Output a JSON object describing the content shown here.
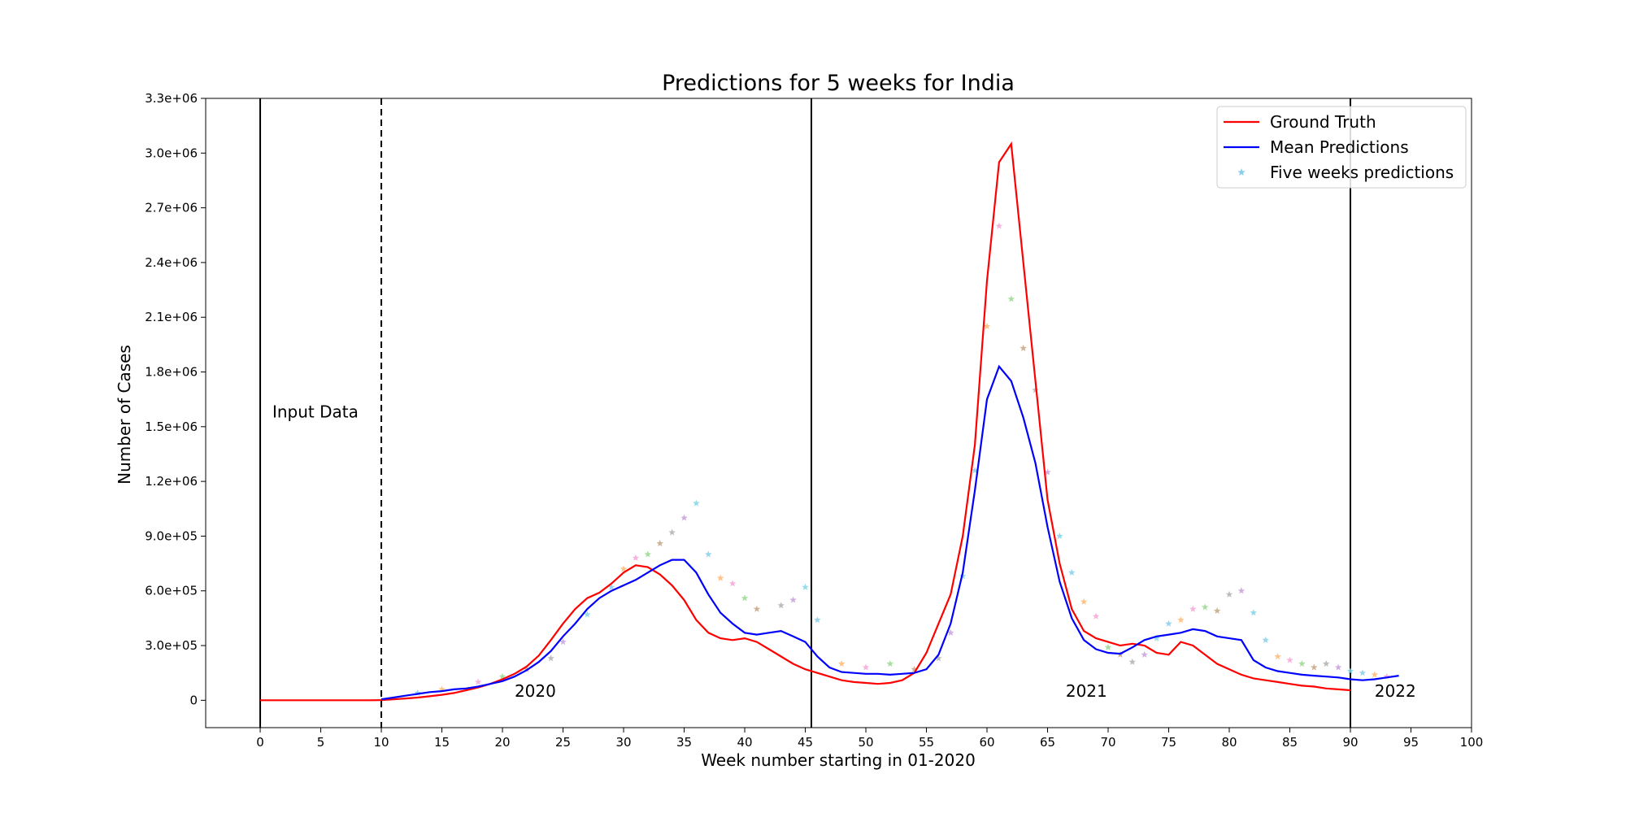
{
  "chart_data": {
    "type": "line",
    "title": "Predictions for 5 weeks for India",
    "xlabel": "Week number starting in 01-2020",
    "ylabel": "Number of Cases",
    "xlim": [
      -4.5,
      100
    ],
    "ylim": [
      -150000,
      3300000
    ],
    "xticks": [
      0,
      5,
      10,
      15,
      20,
      25,
      30,
      35,
      40,
      45,
      50,
      55,
      60,
      65,
      70,
      75,
      80,
      85,
      90,
      95,
      100
    ],
    "yticks": [
      0,
      300000,
      600000,
      900000,
      1200000,
      1500000,
      1800000,
      2100000,
      2400000,
      2700000,
      3000000,
      3300000
    ],
    "ytick_labels": [
      "0",
      "3.0e+05",
      "6.0e+05",
      "9.0e+05",
      "1.2e+06",
      "1.5e+06",
      "1.8e+06",
      "2.1e+06",
      "2.4e+06",
      "2.7e+06",
      "3.0e+06",
      "3.3e+06"
    ],
    "grid": false,
    "legend_position": "top-right",
    "vertical_lines": [
      {
        "x": 0,
        "style": "solid"
      },
      {
        "x": 10,
        "style": "dashed"
      },
      {
        "x": 45.5,
        "style": "solid"
      },
      {
        "x": 90,
        "style": "solid"
      }
    ],
    "annotations": [
      {
        "text": "Input Data",
        "x": 1,
        "y": 1550000
      },
      {
        "text": "2020",
        "x": 21,
        "y": 20000
      },
      {
        "text": "2021",
        "x": 66.5,
        "y": 20000
      },
      {
        "text": "2022",
        "x": 92,
        "y": 20000
      }
    ],
    "series": [
      {
        "name": "Ground Truth",
        "color": "#ff0000",
        "x": [
          0,
          1,
          2,
          3,
          4,
          5,
          6,
          7,
          8,
          9,
          10,
          11,
          12,
          13,
          14,
          15,
          16,
          17,
          18,
          19,
          20,
          21,
          22,
          23,
          24,
          25,
          26,
          27,
          28,
          29,
          30,
          31,
          32,
          33,
          34,
          35,
          36,
          37,
          38,
          39,
          40,
          41,
          42,
          43,
          44,
          45,
          46,
          47,
          48,
          49,
          50,
          51,
          52,
          53,
          54,
          55,
          56,
          57,
          58,
          59,
          60,
          61,
          62,
          63,
          64,
          65,
          66,
          67,
          68,
          69,
          70,
          71,
          72,
          73,
          74,
          75,
          76,
          77,
          78,
          79,
          80,
          81,
          82,
          83,
          84,
          85,
          86,
          87,
          88,
          89,
          90
        ],
        "y": [
          0,
          0,
          0,
          0,
          0,
          0,
          0,
          0,
          0,
          0,
          1000,
          5000,
          10000,
          15000,
          22000,
          30000,
          40000,
          55000,
          70000,
          90000,
          115000,
          145000,
          185000,
          245000,
          330000,
          420000,
          500000,
          560000,
          590000,
          640000,
          700000,
          740000,
          730000,
          690000,
          630000,
          550000,
          440000,
          370000,
          340000,
          330000,
          340000,
          320000,
          280000,
          240000,
          200000,
          170000,
          150000,
          130000,
          110000,
          100000,
          95000,
          90000,
          95000,
          110000,
          150000,
          260000,
          420000,
          580000,
          900000,
          1400000,
          2300000,
          2950000,
          3050000,
          2400000,
          1750000,
          1100000,
          750000,
          500000,
          380000,
          340000,
          320000,
          300000,
          310000,
          300000,
          260000,
          250000,
          320000,
          300000,
          250000,
          200000,
          170000,
          140000,
          120000,
          110000,
          100000,
          90000,
          80000,
          75000,
          65000,
          60000,
          55000
        ]
      },
      {
        "name": "Mean Predictions",
        "color": "#0000ff",
        "x": [
          10,
          11,
          12,
          13,
          14,
          15,
          16,
          17,
          18,
          19,
          20,
          21,
          22,
          23,
          24,
          25,
          26,
          27,
          28,
          29,
          30,
          31,
          32,
          33,
          34,
          35,
          36,
          37,
          38,
          39,
          40,
          41,
          42,
          43,
          44,
          45,
          46,
          47,
          48,
          49,
          50,
          51,
          52,
          53,
          54,
          55,
          56,
          57,
          58,
          59,
          60,
          61,
          62,
          63,
          64,
          65,
          66,
          67,
          68,
          69,
          70,
          71,
          72,
          73,
          74,
          75,
          76,
          77,
          78,
          79,
          80,
          81,
          82,
          83,
          84,
          85,
          86,
          87,
          88,
          89,
          90,
          91,
          92,
          93,
          94
        ],
        "y": [
          5000,
          15000,
          25000,
          35000,
          45000,
          50000,
          60000,
          65000,
          75000,
          90000,
          105000,
          130000,
          165000,
          210000,
          270000,
          350000,
          420000,
          500000,
          560000,
          600000,
          630000,
          660000,
          700000,
          740000,
          770000,
          770000,
          700000,
          580000,
          480000,
          420000,
          370000,
          360000,
          370000,
          380000,
          350000,
          320000,
          240000,
          180000,
          155000,
          150000,
          145000,
          145000,
          140000,
          145000,
          150000,
          170000,
          250000,
          420000,
          700000,
          1150000,
          1650000,
          1830000,
          1750000,
          1550000,
          1300000,
          950000,
          650000,
          450000,
          330000,
          280000,
          260000,
          255000,
          290000,
          330000,
          350000,
          360000,
          370000,
          390000,
          380000,
          350000,
          340000,
          330000,
          220000,
          180000,
          160000,
          150000,
          140000,
          135000,
          130000,
          125000,
          115000,
          110000,
          115000,
          125000,
          135000
        ]
      },
      {
        "name": "Five weeks predictions",
        "color": "#87ceeb",
        "x": [
          13,
          15,
          18,
          20,
          22,
          24,
          25,
          27,
          29,
          30,
          31,
          32,
          33,
          34,
          35,
          36,
          37,
          38,
          39,
          40,
          41,
          43,
          44,
          45,
          46,
          48,
          50,
          52,
          54,
          56,
          57,
          58,
          59,
          60,
          61,
          62,
          63,
          64,
          65,
          66,
          67,
          68,
          69,
          70,
          71,
          72,
          73,
          74,
          75,
          76,
          77,
          78,
          79,
          80,
          81,
          82,
          83,
          84,
          85,
          86,
          87,
          88,
          89,
          90,
          91,
          92,
          93
        ],
        "y": [
          40000,
          60000,
          100000,
          130000,
          170000,
          230000,
          320000,
          470000,
          620000,
          720000,
          780000,
          800000,
          860000,
          920000,
          1000000,
          1080000,
          800000,
          670000,
          640000,
          560000,
          500000,
          520000,
          550000,
          620000,
          440000,
          200000,
          180000,
          200000,
          170000,
          230000,
          370000,
          680000,
          1260000,
          2050000,
          2600000,
          2200000,
          1930000,
          1700000,
          1250000,
          900000,
          700000,
          540000,
          460000,
          290000,
          250000,
          210000,
          250000,
          340000,
          420000,
          440000,
          500000,
          510000,
          490000,
          580000,
          600000,
          480000,
          330000,
          240000,
          220000,
          200000,
          180000,
          200000,
          180000,
          160000,
          150000,
          140000,
          130000
        ]
      }
    ]
  }
}
